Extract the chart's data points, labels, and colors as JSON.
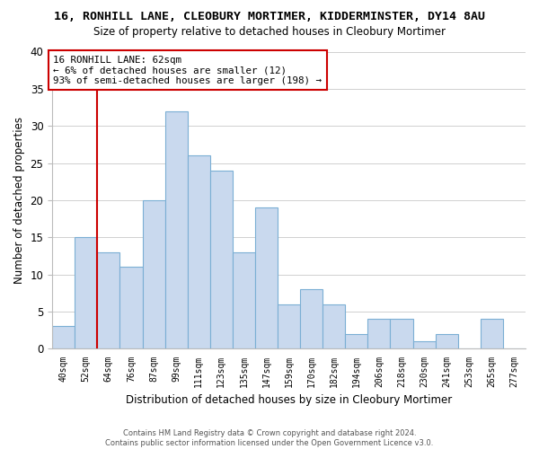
{
  "title": "16, RONHILL LANE, CLEOBURY MORTIMER, KIDDERMINSTER, DY14 8AU",
  "subtitle": "Size of property relative to detached houses in Cleobury Mortimer",
  "xlabel": "Distribution of detached houses by size in Cleobury Mortimer",
  "ylabel": "Number of detached properties",
  "bar_labels": [
    "40sqm",
    "52sqm",
    "64sqm",
    "76sqm",
    "87sqm",
    "99sqm",
    "111sqm",
    "123sqm",
    "135sqm",
    "147sqm",
    "159sqm",
    "170sqm",
    "182sqm",
    "194sqm",
    "206sqm",
    "218sqm",
    "230sqm",
    "241sqm",
    "253sqm",
    "265sqm",
    "277sqm"
  ],
  "bar_values": [
    3,
    15,
    13,
    11,
    20,
    32,
    26,
    24,
    13,
    19,
    6,
    8,
    6,
    2,
    4,
    4,
    1,
    2,
    0,
    4,
    0
  ],
  "bar_color": "#c9d9ee",
  "bar_edge_color": "#7bafd4",
  "vline_color": "#cc0000",
  "annotation_text": "16 RONHILL LANE: 62sqm\n← 6% of detached houses are smaller (12)\n93% of semi-detached houses are larger (198) →",
  "annotation_box_color": "#ffffff",
  "annotation_box_edge": "#cc0000",
  "ylim": [
    0,
    40
  ],
  "yticks": [
    0,
    5,
    10,
    15,
    20,
    25,
    30,
    35,
    40
  ],
  "footer": "Contains HM Land Registry data © Crown copyright and database right 2024.\nContains public sector information licensed under the Open Government Licence v3.0.",
  "bg_color": "#ffffff",
  "grid_color": "#d0d0d0"
}
